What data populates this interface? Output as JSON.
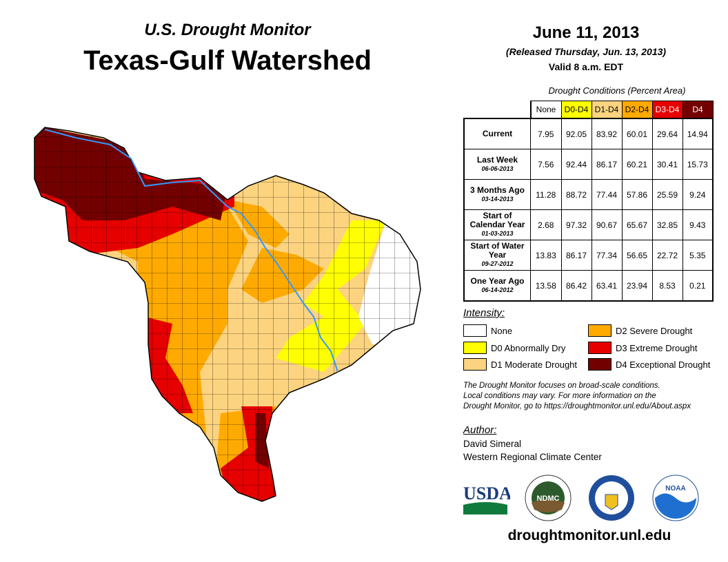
{
  "header": {
    "subtitle": "U.S. Drought Monitor",
    "title": "Texas-Gulf Watershed"
  },
  "info": {
    "date": "June 11, 2013",
    "released": "(Released Thursday, Jun. 13, 2013)",
    "valid": "Valid 8 a.m. EDT"
  },
  "table": {
    "caption": "Drought Conditions (Percent Area)",
    "columns": [
      "None",
      "D0-D4",
      "D1-D4",
      "D2-D4",
      "D3-D4",
      "D4"
    ],
    "rows": [
      {
        "label": "Current",
        "date": "",
        "values": [
          "7.95",
          "92.05",
          "83.92",
          "60.01",
          "29.64",
          "14.94"
        ]
      },
      {
        "label": "Last Week",
        "date": "06-06-2013",
        "values": [
          "7.56",
          "92.44",
          "86.17",
          "60.21",
          "30.41",
          "15.73"
        ]
      },
      {
        "label": "3 Months Ago",
        "date": "03-14-2013",
        "values": [
          "11.28",
          "88.72",
          "77.44",
          "57.86",
          "25.59",
          "9.24"
        ]
      },
      {
        "label": "Start of Calendar Year",
        "date": "01-03-2013",
        "values": [
          "2.68",
          "97.32",
          "90.67",
          "65.67",
          "32.85",
          "9.43"
        ]
      },
      {
        "label": "Start of Water Year",
        "date": "09-27-2012",
        "values": [
          "13.83",
          "86.17",
          "77.34",
          "56.65",
          "22.72",
          "5.35"
        ]
      },
      {
        "label": "One Year Ago",
        "date": "06-14-2012",
        "values": [
          "13.58",
          "86.42",
          "63.41",
          "23.94",
          "8.53",
          "0.21"
        ]
      }
    ]
  },
  "legend": {
    "title": "Intensity:",
    "items": [
      {
        "label": "None",
        "color": "#ffffff"
      },
      {
        "label": "D0 Abnormally Dry",
        "color": "#ffff00"
      },
      {
        "label": "D1 Moderate Drought",
        "color": "#fcd37f"
      },
      {
        "label": "D2 Severe Drought",
        "color": "#ffaa00"
      },
      {
        "label": "D3 Extreme Drought",
        "color": "#e60000"
      },
      {
        "label": "D4 Exceptional Drought",
        "color": "#730000"
      }
    ]
  },
  "note": [
    "The Drought Monitor focuses on broad-scale conditions.",
    "Local conditions may vary. For more information on the",
    "Drought Monitor, go to https://droughtmonitor.unl.edu/About.aspx"
  ],
  "author": {
    "header": "Author:",
    "name": "David Simeral",
    "org": "Western Regional Climate Center"
  },
  "logos": {
    "usda": "USDA",
    "ndmc": "NDMC",
    "noaa": "NOAA"
  },
  "footer": {
    "site": "droughtmonitor.unl.edu"
  }
}
